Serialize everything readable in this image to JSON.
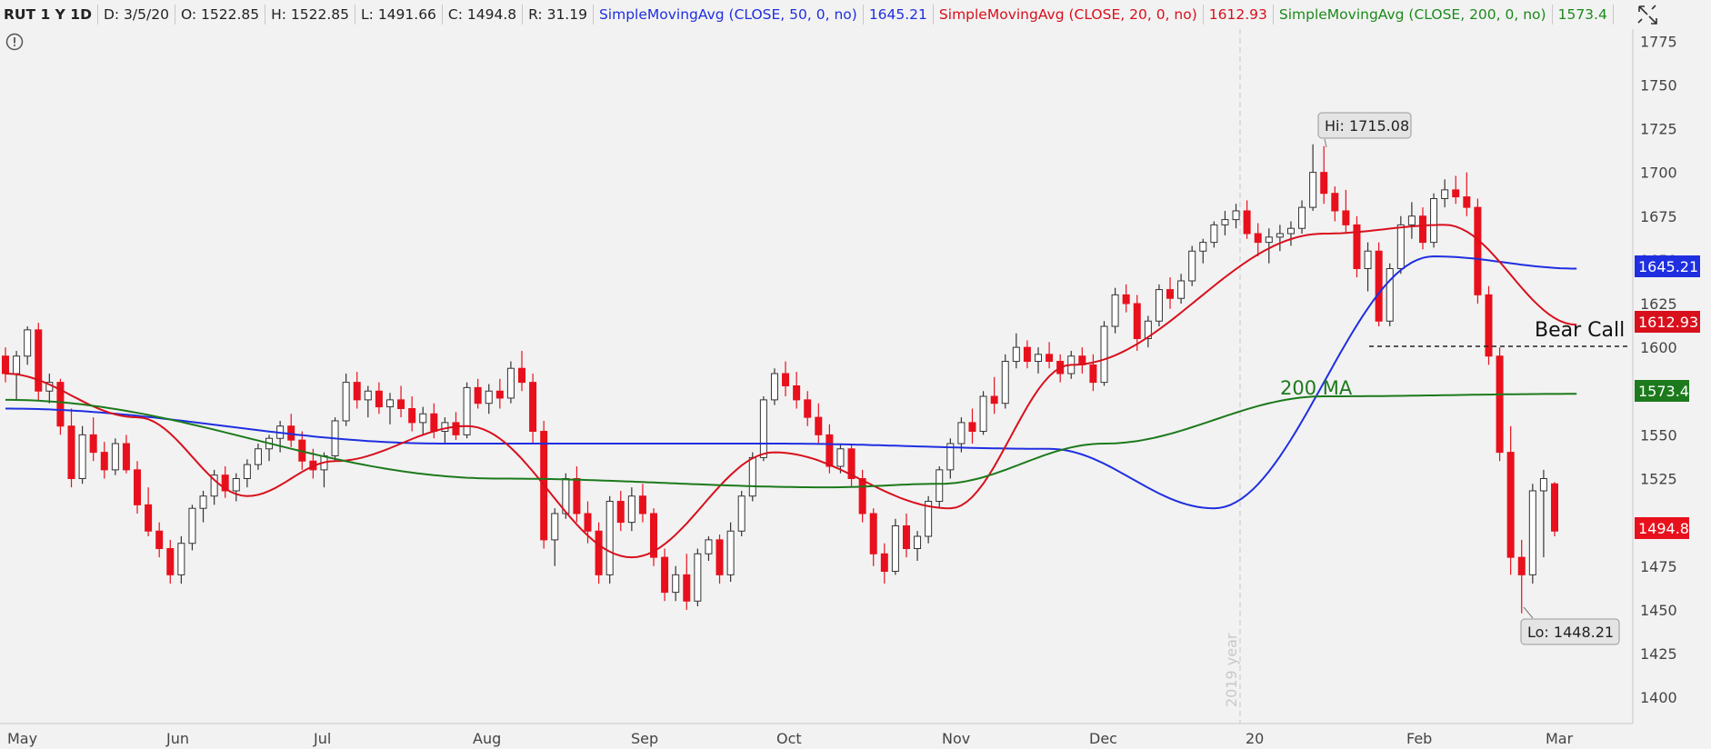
{
  "header": {
    "symbol": "RUT 1 Y 1D",
    "date": "D: 3/5/20",
    "open": "O: 1522.85",
    "high": "H: 1522.85",
    "low": "L: 1491.66",
    "close": "C: 1494.8",
    "range": "R: 31.19",
    "sma50_label": "SimpleMovingAvg (CLOSE, 50, 0, no)",
    "sma50_value": "1645.21",
    "sma20_label": "SimpleMovingAvg (CLOSE, 20, 0, no)",
    "sma20_value": "1612.93",
    "sma200_label": "SimpleMovingAvg (CLOSE, 200, 0, no)",
    "sma200_value": "1573.4"
  },
  "colors": {
    "sma50": "#1f2fe0",
    "sma20": "#d8101c",
    "sma200": "#1c7a1c",
    "down_candle": "#e8101c",
    "up_candle": "#ffffff",
    "last_price": "#e8101c"
  },
  "icons": [
    "cursor-crosshair-icon",
    "alert-icon"
  ],
  "annotations": {
    "hi_label": "Hi: 1715.08",
    "lo_label": "Lo: 1448.21",
    "bear_call": "Bear Call",
    "bear_call_level": 1600,
    "ma200_label": "200 MA",
    "year_marker": "2019 year"
  },
  "chart_data": {
    "type": "candlestick",
    "title": "RUT 1 Y 1D",
    "ylim": [
      1385,
      1785
    ],
    "y_ticks": [
      1400,
      1425,
      1450,
      1475,
      1500,
      1525,
      1550,
      1575,
      1600,
      1625,
      1650,
      1675,
      1700,
      1725,
      1750,
      1775
    ],
    "x_ticks": [
      "May",
      "Jun",
      "Jul",
      "Aug",
      "Sep",
      "Oct",
      "Nov",
      "Dec",
      "20",
      "Feb",
      "Mar"
    ],
    "price_badges": [
      {
        "name": "sma50",
        "value": "1645.21"
      },
      {
        "name": "sma20",
        "value": "1612.93"
      },
      {
        "name": "sma200",
        "value": "1573.4"
      },
      {
        "name": "last",
        "value": "1494.8"
      }
    ],
    "highlight": {
      "hi": 1715.08,
      "lo": 1448.21
    },
    "candles": [
      [
        1595,
        1600,
        1580,
        1585
      ],
      [
        1585,
        1598,
        1570,
        1595
      ],
      [
        1595,
        1612,
        1590,
        1610
      ],
      [
        1610,
        1614,
        1570,
        1575
      ],
      [
        1575,
        1585,
        1568,
        1580
      ],
      [
        1580,
        1582,
        1550,
        1555
      ],
      [
        1555,
        1565,
        1520,
        1525
      ],
      [
        1525,
        1555,
        1522,
        1550
      ],
      [
        1550,
        1560,
        1535,
        1540
      ],
      [
        1540,
        1546,
        1525,
        1530
      ],
      [
        1530,
        1548,
        1527,
        1545
      ],
      [
        1545,
        1550,
        1528,
        1530
      ],
      [
        1530,
        1535,
        1505,
        1510
      ],
      [
        1510,
        1520,
        1492,
        1495
      ],
      [
        1495,
        1500,
        1480,
        1485
      ],
      [
        1485,
        1490,
        1465,
        1470
      ],
      [
        1470,
        1492,
        1465,
        1488
      ],
      [
        1488,
        1510,
        1484,
        1508
      ],
      [
        1508,
        1518,
        1500,
        1515
      ],
      [
        1515,
        1530,
        1510,
        1527
      ],
      [
        1527,
        1532,
        1514,
        1518
      ],
      [
        1518,
        1528,
        1512,
        1525
      ],
      [
        1525,
        1536,
        1520,
        1533
      ],
      [
        1533,
        1545,
        1530,
        1542
      ],
      [
        1542,
        1550,
        1535,
        1548
      ],
      [
        1548,
        1558,
        1540,
        1555
      ],
      [
        1555,
        1562,
        1543,
        1547
      ],
      [
        1547,
        1552,
        1530,
        1535
      ],
      [
        1535,
        1542,
        1525,
        1530
      ],
      [
        1530,
        1540,
        1520,
        1538
      ],
      [
        1538,
        1560,
        1535,
        1558
      ],
      [
        1558,
        1585,
        1555,
        1580
      ],
      [
        1580,
        1586,
        1565,
        1570
      ],
      [
        1570,
        1578,
        1560,
        1575
      ],
      [
        1575,
        1580,
        1562,
        1566
      ],
      [
        1566,
        1574,
        1556,
        1570
      ],
      [
        1570,
        1578,
        1560,
        1565
      ],
      [
        1565,
        1572,
        1552,
        1557
      ],
      [
        1557,
        1566,
        1550,
        1562
      ],
      [
        1562,
        1568,
        1548,
        1552
      ],
      [
        1552,
        1560,
        1545,
        1557
      ],
      [
        1557,
        1563,
        1547,
        1550
      ],
      [
        1550,
        1580,
        1548,
        1577
      ],
      [
        1577,
        1582,
        1565,
        1568
      ],
      [
        1568,
        1579,
        1562,
        1575
      ],
      [
        1575,
        1582,
        1565,
        1571
      ],
      [
        1571,
        1592,
        1568,
        1588
      ],
      [
        1588,
        1598,
        1575,
        1580
      ],
      [
        1580,
        1585,
        1545,
        1552
      ],
      [
        1552,
        1558,
        1485,
        1490
      ],
      [
        1490,
        1508,
        1475,
        1505
      ],
      [
        1505,
        1528,
        1502,
        1525
      ],
      [
        1525,
        1532,
        1500,
        1505
      ],
      [
        1505,
        1512,
        1488,
        1495
      ],
      [
        1495,
        1500,
        1465,
        1470
      ],
      [
        1470,
        1515,
        1465,
        1512
      ],
      [
        1512,
        1518,
        1495,
        1500
      ],
      [
        1500,
        1520,
        1495,
        1515
      ],
      [
        1515,
        1522,
        1500,
        1505
      ],
      [
        1505,
        1508,
        1475,
        1480
      ],
      [
        1480,
        1485,
        1455,
        1460
      ],
      [
        1460,
        1475,
        1455,
        1470
      ],
      [
        1470,
        1482,
        1450,
        1455
      ],
      [
        1455,
        1485,
        1452,
        1482
      ],
      [
        1482,
        1492,
        1478,
        1490
      ],
      [
        1490,
        1493,
        1465,
        1470
      ],
      [
        1470,
        1500,
        1466,
        1495
      ],
      [
        1495,
        1518,
        1492,
        1515
      ],
      [
        1515,
        1540,
        1512,
        1537
      ],
      [
        1537,
        1572,
        1535,
        1570
      ],
      [
        1570,
        1588,
        1567,
        1585
      ],
      [
        1585,
        1592,
        1572,
        1578
      ],
      [
        1578,
        1586,
        1565,
        1570
      ],
      [
        1570,
        1575,
        1555,
        1560
      ],
      [
        1560,
        1568,
        1545,
        1550
      ],
      [
        1550,
        1556,
        1528,
        1532
      ],
      [
        1532,
        1545,
        1528,
        1542
      ],
      [
        1542,
        1545,
        1520,
        1525
      ],
      [
        1525,
        1530,
        1500,
        1505
      ],
      [
        1505,
        1508,
        1475,
        1482
      ],
      [
        1482,
        1488,
        1465,
        1472
      ],
      [
        1472,
        1502,
        1470,
        1498
      ],
      [
        1498,
        1505,
        1480,
        1485
      ],
      [
        1485,
        1495,
        1478,
        1492
      ],
      [
        1492,
        1515,
        1488,
        1512
      ],
      [
        1512,
        1532,
        1508,
        1530
      ],
      [
        1530,
        1548,
        1525,
        1545
      ],
      [
        1545,
        1560,
        1540,
        1557
      ],
      [
        1557,
        1565,
        1545,
        1552
      ],
      [
        1552,
        1575,
        1550,
        1572
      ],
      [
        1572,
        1583,
        1562,
        1568
      ],
      [
        1568,
        1596,
        1565,
        1592
      ],
      [
        1592,
        1608,
        1588,
        1600
      ],
      [
        1600,
        1604,
        1588,
        1592
      ],
      [
        1592,
        1600,
        1585,
        1596
      ],
      [
        1596,
        1603,
        1588,
        1592
      ],
      [
        1592,
        1596,
        1580,
        1585
      ],
      [
        1585,
        1598,
        1582,
        1595
      ],
      [
        1595,
        1600,
        1585,
        1590
      ],
      [
        1590,
        1596,
        1575,
        1580
      ],
      [
        1580,
        1615,
        1578,
        1612
      ],
      [
        1612,
        1634,
        1608,
        1630
      ],
      [
        1630,
        1636,
        1620,
        1625
      ],
      [
        1625,
        1630,
        1598,
        1605
      ],
      [
        1605,
        1618,
        1600,
        1615
      ],
      [
        1615,
        1636,
        1612,
        1633
      ],
      [
        1633,
        1640,
        1622,
        1628
      ],
      [
        1628,
        1642,
        1625,
        1638
      ],
      [
        1638,
        1658,
        1635,
        1655
      ],
      [
        1655,
        1662,
        1648,
        1660
      ],
      [
        1660,
        1672,
        1657,
        1670
      ],
      [
        1670,
        1678,
        1664,
        1673
      ],
      [
        1673,
        1682,
        1668,
        1678
      ],
      [
        1678,
        1684,
        1662,
        1665
      ],
      [
        1665,
        1671,
        1652,
        1660
      ],
      [
        1660,
        1668,
        1648,
        1663
      ],
      [
        1663,
        1670,
        1655,
        1665
      ],
      [
        1665,
        1672,
        1658,
        1668
      ],
      [
        1668,
        1684,
        1665,
        1680
      ],
      [
        1680,
        1716,
        1678,
        1700
      ],
      [
        1700,
        1715,
        1682,
        1688
      ],
      [
        1688,
        1692,
        1672,
        1678
      ],
      [
        1678,
        1690,
        1665,
        1670
      ],
      [
        1670,
        1675,
        1640,
        1645
      ],
      [
        1645,
        1660,
        1632,
        1655
      ],
      [
        1655,
        1660,
        1612,
        1615
      ],
      [
        1615,
        1648,
        1612,
        1645
      ],
      [
        1645,
        1675,
        1642,
        1670
      ],
      [
        1670,
        1683,
        1662,
        1675
      ],
      [
        1675,
        1680,
        1656,
        1660
      ],
      [
        1660,
        1688,
        1657,
        1685
      ],
      [
        1685,
        1696,
        1680,
        1690
      ],
      [
        1690,
        1698,
        1682,
        1686
      ],
      [
        1686,
        1700,
        1675,
        1680
      ],
      [
        1680,
        1685,
        1625,
        1630
      ],
      [
        1630,
        1635,
        1590,
        1595
      ],
      [
        1595,
        1600,
        1535,
        1540
      ],
      [
        1540,
        1555,
        1470,
        1480
      ],
      [
        1480,
        1490,
        1448,
        1470
      ],
      [
        1470,
        1522,
        1465,
        1518
      ],
      [
        1518,
        1530,
        1480,
        1525
      ],
      [
        1522,
        1523,
        1492,
        1495
      ]
    ],
    "series": [
      {
        "name": "SimpleMovingAvg (CLOSE, 50, 0, no)",
        "color": "#1f2fe0",
        "anchors": [
          [
            0,
            1565
          ],
          [
            40,
            1545
          ],
          [
            70,
            1545
          ],
          [
            95,
            1542
          ],
          [
            110,
            1508
          ],
          [
            130,
            1652
          ],
          [
            143,
            1645
          ]
        ]
      },
      {
        "name": "SimpleMovingAvg (CLOSE, 20, 0, no)",
        "color": "#d8101c",
        "anchors": [
          [
            0,
            1585
          ],
          [
            12,
            1560
          ],
          [
            22,
            1515
          ],
          [
            30,
            1535
          ],
          [
            42,
            1555
          ],
          [
            57,
            1480
          ],
          [
            70,
            1540
          ],
          [
            86,
            1508
          ],
          [
            97,
            1590
          ],
          [
            120,
            1665
          ],
          [
            131,
            1670
          ],
          [
            143,
            1612.93
          ]
        ]
      },
      {
        "name": "SimpleMovingAvg (CLOSE, 200, 0, no)",
        "color": "#1c7a1c",
        "anchors": [
          [
            0,
            1570
          ],
          [
            45,
            1525
          ],
          [
            75,
            1520
          ],
          [
            85,
            1522
          ],
          [
            100,
            1545
          ],
          [
            120,
            1572
          ],
          [
            143,
            1573.4
          ]
        ]
      }
    ]
  }
}
